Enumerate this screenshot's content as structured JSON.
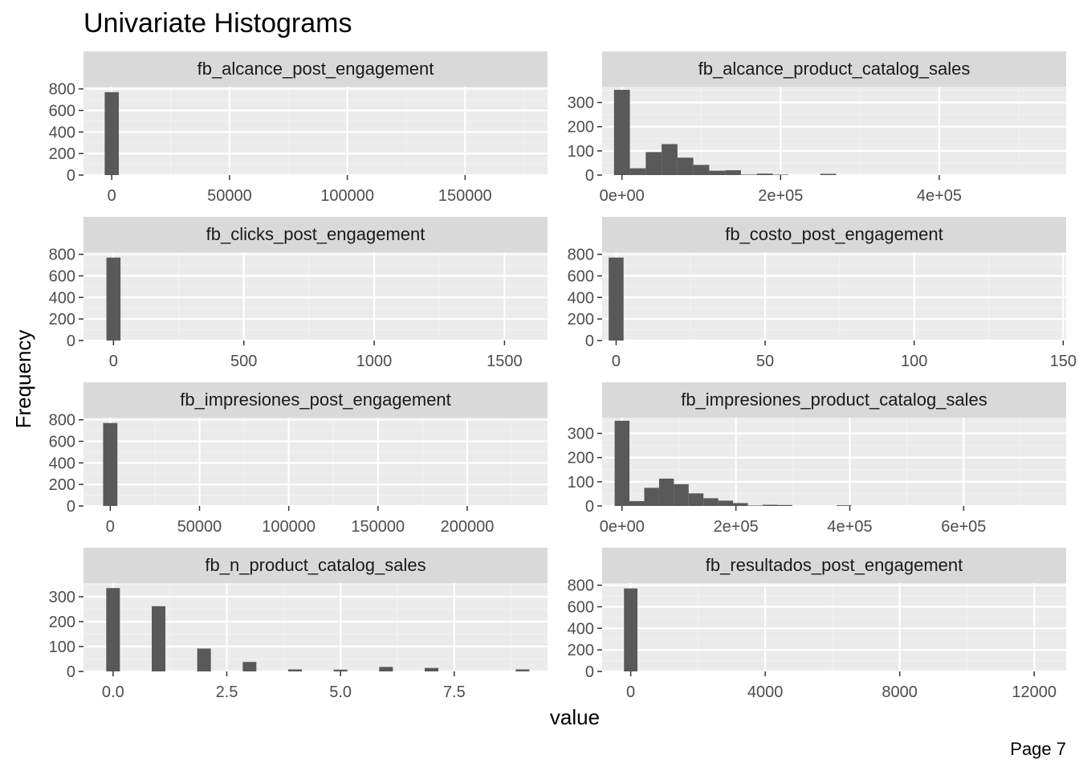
{
  "figure": {
    "title": "Univariate Histograms",
    "xlabel": "value",
    "ylabel": "Frequency",
    "page_label": "Page 7"
  },
  "colors": {
    "bar": "#595959",
    "panel_bg": "#EBEBEB",
    "strip_bg": "#D9D9D9",
    "grid_major": "#FFFFFF",
    "grid_minor": "#F2F2F2",
    "axis_text": "#4D4D4D",
    "title_text": "#000000"
  },
  "chart_data": [
    {
      "type": "bar",
      "title": "fb_alcance_post_engagement",
      "xlim": [
        -12000,
        185000
      ],
      "ylim": [
        0,
        820
      ],
      "xbreaks": [
        0,
        50000,
        100000,
        150000
      ],
      "xlabels": [
        "0",
        "50000",
        "100000",
        "150000"
      ],
      "ybreaks": [
        0,
        200,
        400,
        600,
        800
      ],
      "ylabels": [
        "0",
        "200",
        "400",
        "600",
        "800"
      ],
      "bars": [
        {
          "x0": -3000,
          "x1": 3000,
          "y": 770
        }
      ]
    },
    {
      "type": "bar",
      "title": "fb_alcance_product_catalog_sales",
      "xlim": [
        -25000,
        560000
      ],
      "ylim": [
        0,
        365
      ],
      "xbreaks": [
        0,
        200000,
        400000
      ],
      "xlabels": [
        "0e+00",
        "2e+05",
        "4e+05"
      ],
      "ybreaks": [
        0,
        100,
        200,
        300
      ],
      "ylabels": [
        "0",
        "100",
        "200",
        "300"
      ],
      "bars": [
        {
          "x0": -10000,
          "x1": 10000,
          "y": 352
        },
        {
          "x0": 10000,
          "x1": 30000,
          "y": 28
        },
        {
          "x0": 30000,
          "x1": 50000,
          "y": 95
        },
        {
          "x0": 50000,
          "x1": 70000,
          "y": 128
        },
        {
          "x0": 70000,
          "x1": 90000,
          "y": 72
        },
        {
          "x0": 90000,
          "x1": 110000,
          "y": 42
        },
        {
          "x0": 110000,
          "x1": 130000,
          "y": 18
        },
        {
          "x0": 130000,
          "x1": 150000,
          "y": 20
        },
        {
          "x0": 150000,
          "x1": 170000,
          "y": 2
        },
        {
          "x0": 170000,
          "x1": 190000,
          "y": 6
        },
        {
          "x0": 190000,
          "x1": 210000,
          "y": 2
        },
        {
          "x0": 250000,
          "x1": 270000,
          "y": 5
        }
      ]
    },
    {
      "type": "bar",
      "title": "fb_clicks_post_engagement",
      "xlim": [
        -115,
        1665
      ],
      "ylim": [
        0,
        820
      ],
      "xbreaks": [
        0,
        500,
        1000,
        1500
      ],
      "xlabels": [
        "0",
        "500",
        "1000",
        "1500"
      ],
      "ybreaks": [
        0,
        200,
        400,
        600,
        800
      ],
      "ylabels": [
        "0",
        "200",
        "400",
        "600",
        "800"
      ],
      "bars": [
        {
          "x0": -27,
          "x1": 27,
          "y": 770
        }
      ]
    },
    {
      "type": "bar",
      "title": "fb_costo_post_engagement",
      "xlim": [
        -4.7,
        151
      ],
      "ylim": [
        0,
        820
      ],
      "xbreaks": [
        0,
        50,
        100,
        150
      ],
      "xlabels": [
        "0",
        "50",
        "100",
        "150"
      ],
      "ybreaks": [
        0,
        200,
        400,
        600,
        800
      ],
      "ylabels": [
        "0",
        "200",
        "400",
        "600",
        "800"
      ],
      "bars": [
        {
          "x0": -2.5,
          "x1": 2.5,
          "y": 770
        }
      ]
    },
    {
      "type": "bar",
      "title": "fb_impresiones_post_engagement",
      "xlim": [
        -15000,
        245000
      ],
      "ylim": [
        0,
        820
      ],
      "xbreaks": [
        0,
        50000,
        100000,
        150000,
        200000
      ],
      "xlabels": [
        "0",
        "50000",
        "100000",
        "150000",
        "200000"
      ],
      "ybreaks": [
        0,
        200,
        400,
        600,
        800
      ],
      "ylabels": [
        "0",
        "200",
        "400",
        "600",
        "800"
      ],
      "bars": [
        {
          "x0": -4000,
          "x1": 4000,
          "y": 770
        }
      ]
    },
    {
      "type": "bar",
      "title": "fb_impresiones_product_catalog_sales",
      "xlim": [
        -35000,
        780000
      ],
      "ylim": [
        0,
        365
      ],
      "xbreaks": [
        0,
        200000,
        400000,
        600000
      ],
      "xlabels": [
        "0e+00",
        "2e+05",
        "4e+05",
        "6e+05"
      ],
      "ybreaks": [
        0,
        100,
        200,
        300
      ],
      "ylabels": [
        "0",
        "100",
        "200",
        "300"
      ],
      "bars": [
        {
          "x0": -13000,
          "x1": 13000,
          "y": 352
        },
        {
          "x0": 13000,
          "x1": 39000,
          "y": 20
        },
        {
          "x0": 39000,
          "x1": 65000,
          "y": 75
        },
        {
          "x0": 65000,
          "x1": 91000,
          "y": 113
        },
        {
          "x0": 91000,
          "x1": 117000,
          "y": 90
        },
        {
          "x0": 117000,
          "x1": 143000,
          "y": 52
        },
        {
          "x0": 143000,
          "x1": 169000,
          "y": 32
        },
        {
          "x0": 169000,
          "x1": 195000,
          "y": 22
        },
        {
          "x0": 195000,
          "x1": 221000,
          "y": 12
        },
        {
          "x0": 221000,
          "x1": 247000,
          "y": 2
        },
        {
          "x0": 247000,
          "x1": 273000,
          "y": 5
        },
        {
          "x0": 273000,
          "x1": 299000,
          "y": 4
        },
        {
          "x0": 377000,
          "x1": 403000,
          "y": 3
        }
      ]
    },
    {
      "type": "bar",
      "title": "fb_n_product_catalog_sales",
      "xlim": [
        -0.65,
        9.55
      ],
      "ylim": [
        0,
        355
      ],
      "xbreaks": [
        0,
        2.5,
        5,
        7.5
      ],
      "xlabels": [
        "0.0",
        "2.5",
        "5.0",
        "7.5"
      ],
      "ybreaks": [
        0,
        100,
        200,
        300
      ],
      "ylabels": [
        "0",
        "100",
        "200",
        "300"
      ],
      "bars": [
        {
          "x0": -0.15,
          "x1": 0.15,
          "y": 335
        },
        {
          "x0": 0.85,
          "x1": 1.15,
          "y": 262
        },
        {
          "x0": 1.85,
          "x1": 2.15,
          "y": 92
        },
        {
          "x0": 2.85,
          "x1": 3.15,
          "y": 38
        },
        {
          "x0": 3.85,
          "x1": 4.15,
          "y": 8
        },
        {
          "x0": 4.85,
          "x1": 5.15,
          "y": 7
        },
        {
          "x0": 5.85,
          "x1": 6.15,
          "y": 18
        },
        {
          "x0": 6.85,
          "x1": 7.15,
          "y": 14
        },
        {
          "x0": 8.85,
          "x1": 9.15,
          "y": 8
        }
      ]
    },
    {
      "type": "bar",
      "title": "fb_resultados_post_engagement",
      "xlim": [
        -850,
        12950
      ],
      "ylim": [
        0,
        820
      ],
      "xbreaks": [
        0,
        4000,
        8000,
        12000
      ],
      "xlabels": [
        "0",
        "4000",
        "8000",
        "12000"
      ],
      "ybreaks": [
        0,
        200,
        400,
        600,
        800
      ],
      "ylabels": [
        "0",
        "200",
        "400",
        "600",
        "800"
      ],
      "bars": [
        {
          "x0": -200,
          "x1": 200,
          "y": 770
        }
      ]
    }
  ]
}
